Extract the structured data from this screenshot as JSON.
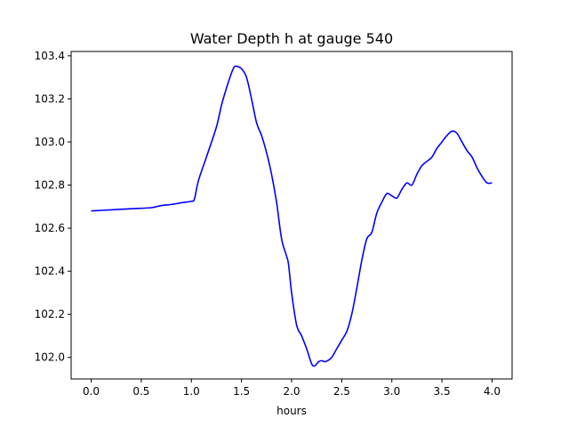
{
  "chart_data": {
    "type": "line",
    "title": "Water Depth h at gauge 540",
    "xlabel": "hours",
    "ylabel": "",
    "xlim": [
      -0.2,
      4.2
    ],
    "ylim": [
      101.9,
      103.42
    ],
    "xticks": [
      0.0,
      0.5,
      1.0,
      1.5,
      2.0,
      2.5,
      3.0,
      3.5,
      4.0
    ],
    "xtick_labels": [
      "0.0",
      "0.5",
      "1.0",
      "1.5",
      "2.0",
      "2.5",
      "3.0",
      "3.5",
      "4.0"
    ],
    "yticks": [
      102.0,
      102.2,
      102.4,
      102.6,
      102.8,
      103.0,
      103.2,
      103.4
    ],
    "ytick_labels": [
      "102.0",
      "102.2",
      "102.4",
      "102.6",
      "102.8",
      "103.0",
      "103.2",
      "103.4"
    ],
    "grid": false,
    "series": [
      {
        "color": "#0000ff",
        "x": [
          0.0,
          0.2,
          0.4,
          0.6,
          0.7,
          0.8,
          0.9,
          1.0,
          1.03,
          1.07,
          1.15,
          1.25,
          1.3,
          1.35,
          1.4,
          1.43,
          1.46,
          1.5,
          1.55,
          1.6,
          1.65,
          1.7,
          1.75,
          1.8,
          1.85,
          1.9,
          1.95,
          1.97,
          2.0,
          2.05,
          2.1,
          2.15,
          2.2,
          2.23,
          2.25,
          2.27,
          2.3,
          2.33,
          2.36,
          2.4,
          2.45,
          2.5,
          2.55,
          2.6,
          2.65,
          2.7,
          2.75,
          2.8,
          2.85,
          2.9,
          2.95,
          3.0,
          3.05,
          3.1,
          3.15,
          3.2,
          3.25,
          3.3,
          3.35,
          3.4,
          3.45,
          3.5,
          3.55,
          3.6,
          3.65,
          3.7,
          3.75,
          3.8,
          3.85,
          3.9,
          3.95,
          4.0
        ],
        "y": [
          102.68,
          102.685,
          102.69,
          102.695,
          102.705,
          102.71,
          102.718,
          102.725,
          102.735,
          102.82,
          102.93,
          103.07,
          103.17,
          103.25,
          103.32,
          103.35,
          103.35,
          103.34,
          103.3,
          103.2,
          103.09,
          103.03,
          102.95,
          102.85,
          102.72,
          102.55,
          102.47,
          102.43,
          102.3,
          102.15,
          102.1,
          102.04,
          101.97,
          101.96,
          101.97,
          101.98,
          101.985,
          101.98,
          101.985,
          102.0,
          102.04,
          102.08,
          102.12,
          102.2,
          102.32,
          102.45,
          102.55,
          102.58,
          102.67,
          102.72,
          102.76,
          102.75,
          102.74,
          102.78,
          102.81,
          102.8,
          102.85,
          102.89,
          102.91,
          102.93,
          102.97,
          103.0,
          103.03,
          103.05,
          103.04,
          103.0,
          102.96,
          102.93,
          102.88,
          102.84,
          102.81,
          102.81
        ]
      }
    ]
  }
}
